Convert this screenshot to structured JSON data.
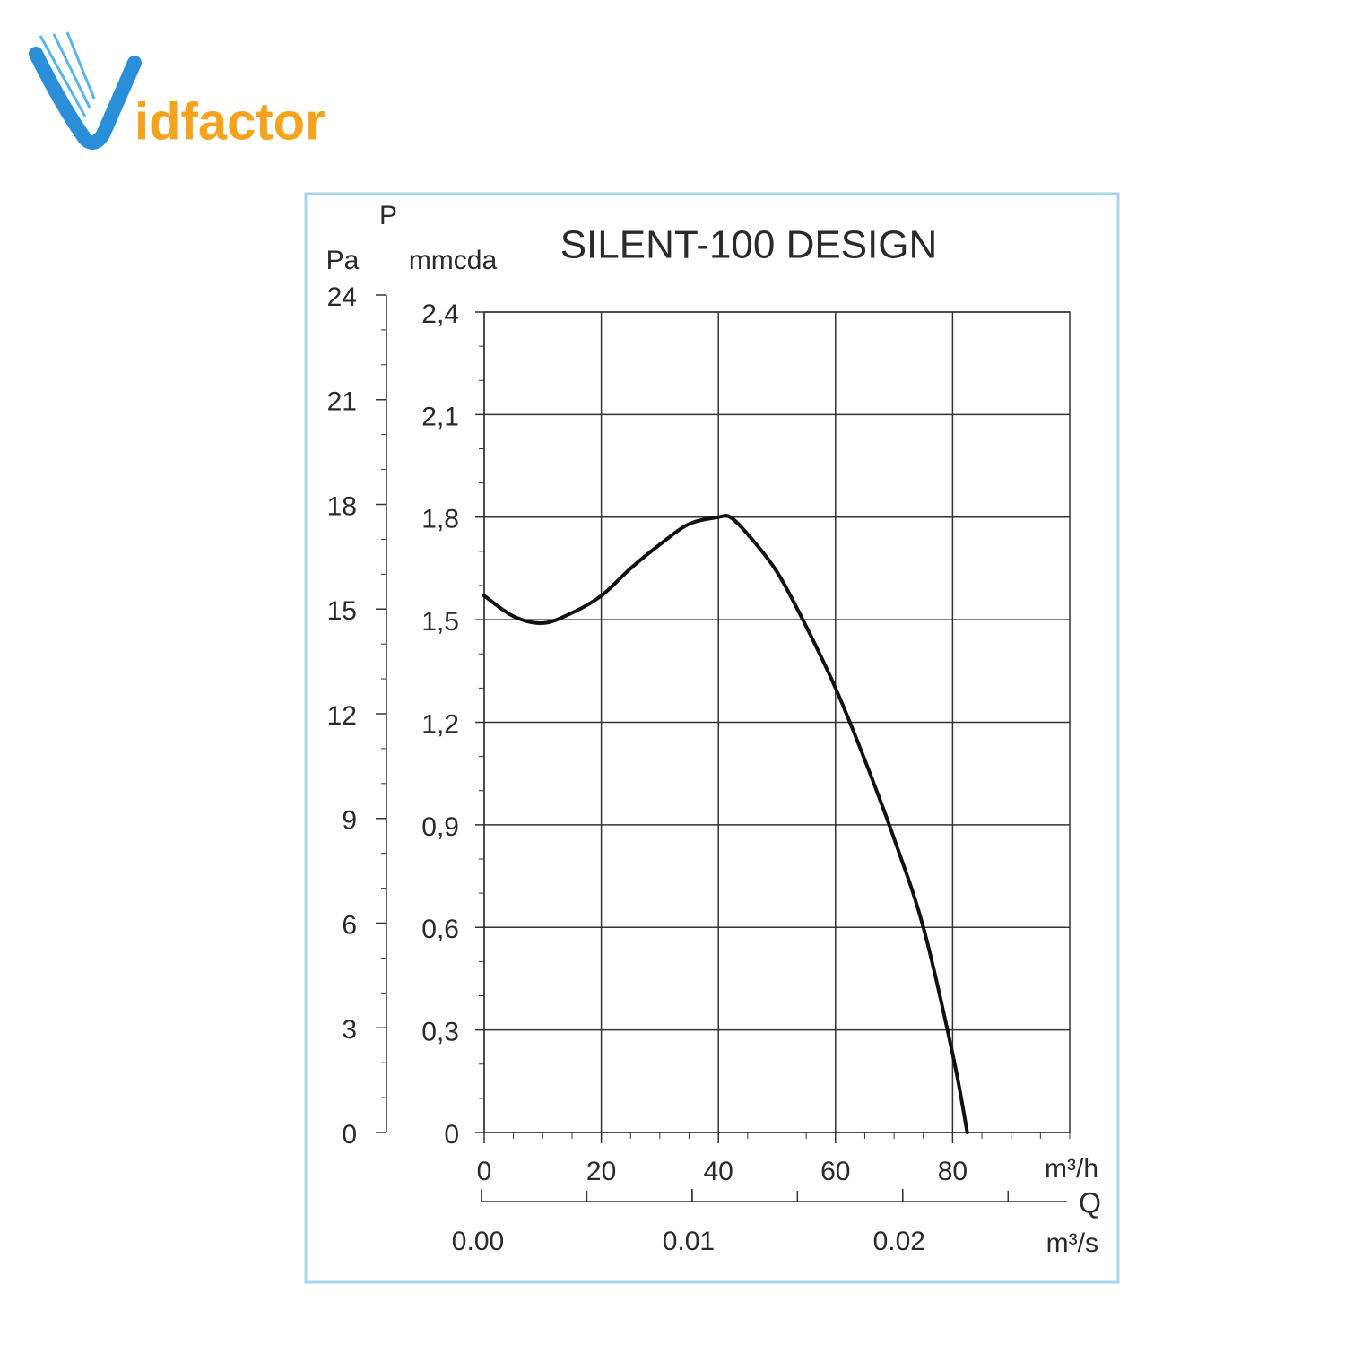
{
  "logo": {
    "initial": "V",
    "rest": "idfactor"
  },
  "chart_data": {
    "type": "line",
    "title": "SILENT-100 DESIGN",
    "y_label": "P",
    "y_unit": "mmcda",
    "y2_unit": "Pa",
    "x_unit": "m³/h",
    "x_label": "Q",
    "x2_unit": "m³/s",
    "x": [
      0,
      5,
      10,
      15,
      20,
      25,
      30,
      35,
      40,
      42,
      45,
      50,
      55,
      60,
      65,
      70,
      75,
      80,
      82.5
    ],
    "values": [
      1.57,
      1.51,
      1.49,
      1.52,
      1.57,
      1.65,
      1.72,
      1.78,
      1.8,
      1.8,
      1.75,
      1.64,
      1.48,
      1.3,
      1.09,
      0.86,
      0.6,
      0.23,
      0
    ],
    "color": "#111111",
    "xlim": [
      0,
      100
    ],
    "xticks": [
      0,
      20,
      40,
      60,
      80
    ],
    "ylim": [
      0,
      2.4
    ],
    "yticks": [
      {
        "value": 0,
        "label": "0"
      },
      {
        "value": 0.3,
        "label": "0,3"
      },
      {
        "value": 0.6,
        "label": "0,6"
      },
      {
        "value": 0.9,
        "label": "0,9"
      },
      {
        "value": 1.2,
        "label": "1,2"
      },
      {
        "value": 1.5,
        "label": "1,5"
      },
      {
        "value": 1.8,
        "label": "1,8"
      },
      {
        "value": 2.1,
        "label": "2,1"
      },
      {
        "value": 2.4,
        "label": "2,4"
      }
    ],
    "y2lim": [
      0,
      24
    ],
    "y2ticks": [
      0,
      3,
      6,
      9,
      12,
      15,
      18,
      21,
      24
    ],
    "x2lim": [
      0,
      0.0278
    ],
    "x2ticks": [
      {
        "value": 0,
        "label": "0.00"
      },
      0.01,
      0.02
    ],
    "grid": true
  }
}
